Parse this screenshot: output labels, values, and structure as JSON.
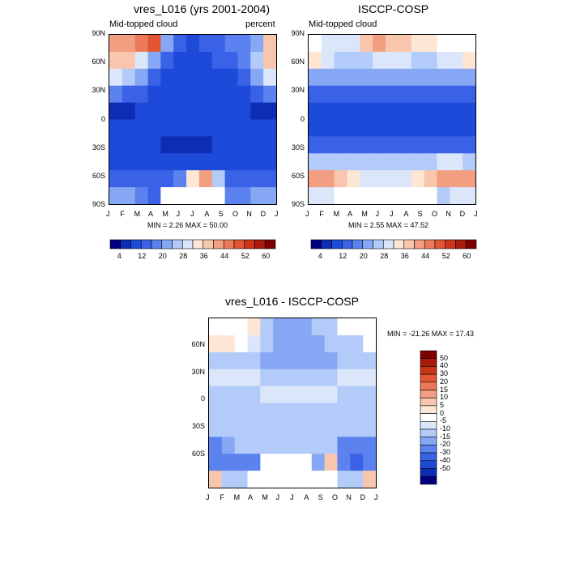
{
  "colors": {
    "d1": "#000080",
    "d2": "#0e2db5",
    "d3": "#1d4ad8",
    "d4": "#3a62e6",
    "d5": "#5b82ef",
    "d6": "#86a8f4",
    "d7": "#b3cbf8",
    "d8": "#dbe6fb",
    "w": "#ffffff",
    "u1": "#fde6d4",
    "u2": "#f8c6ad",
    "u3": "#f29e80",
    "u4": "#ec7a58",
    "u5": "#e25634",
    "u6": "#cc3418",
    "u7": "#a81a0a",
    "u8": "#800000"
  },
  "chart_data": [
    {
      "type": "heatmap",
      "title": "vres_L016 (yrs 2001-2004)",
      "left_label": "Mid-topped cloud",
      "right_label": "percent",
      "stats": "MIN =   2.26 MAX =  50.00",
      "x_ticks": [
        "J",
        "F",
        "M",
        "A",
        "M",
        "J",
        "J",
        "A",
        "S",
        "O",
        "N",
        "D",
        "J"
      ],
      "y_ticks": [
        "90N",
        "60N",
        "30N",
        "0",
        "30S",
        "60S",
        "90S"
      ],
      "colorbar_ticks": [
        "4",
        "12",
        "20",
        "28",
        "36",
        "44",
        "52",
        "60"
      ],
      "colorbar_levels": 16,
      "approx_values_note": "percent, rows 90N->90S, columns J..J",
      "grid": [
        [
          40,
          40,
          44,
          48,
          20,
          12,
          10,
          12,
          14,
          16,
          18,
          20,
          38
        ],
        [
          36,
          38,
          30,
          22,
          14,
          10,
          10,
          10,
          12,
          14,
          16,
          24,
          36
        ],
        [
          28,
          26,
          20,
          14,
          10,
          10,
          10,
          10,
          10,
          10,
          14,
          20,
          28
        ],
        [
          16,
          14,
          12,
          10,
          8,
          8,
          8,
          8,
          8,
          8,
          10,
          12,
          16
        ],
        [
          6,
          6,
          8,
          8,
          8,
          8,
          8,
          8,
          8,
          8,
          8,
          6,
          6
        ],
        [
          10,
          10,
          10,
          10,
          10,
          10,
          10,
          10,
          10,
          10,
          10,
          10,
          10
        ],
        [
          8,
          8,
          8,
          8,
          6,
          6,
          6,
          6,
          8,
          8,
          8,
          8,
          8
        ],
        [
          8,
          8,
          8,
          8,
          8,
          8,
          8,
          8,
          8,
          8,
          8,
          8,
          8
        ],
        [
          12,
          12,
          12,
          12,
          14,
          18,
          34,
          42,
          24,
          14,
          12,
          12,
          12
        ],
        [
          20,
          22,
          18,
          14,
          null,
          null,
          null,
          null,
          null,
          16,
          18,
          22,
          20
        ]
      ]
    },
    {
      "type": "heatmap",
      "title": "ISCCP-COSP",
      "left_label": "Mid-topped cloud",
      "right_label": "",
      "stats": "MIN =   2.55 MAX =  47.52",
      "x_ticks": [
        "J",
        "F",
        "M",
        "A",
        "M",
        "J",
        "J",
        "A",
        "S",
        "O",
        "N",
        "D",
        "J"
      ],
      "y_ticks": [
        "90N",
        "60N",
        "30N",
        "0",
        "30S",
        "60S",
        "90S"
      ],
      "colorbar_ticks": [
        "4",
        "12",
        "20",
        "28",
        "36",
        "44",
        "52",
        "60"
      ],
      "colorbar_levels": 16,
      "grid": [
        [
          null,
          30,
          30,
          28,
          36,
          40,
          38,
          36,
          34,
          32,
          null,
          null,
          null
        ],
        [
          32,
          30,
          26,
          24,
          26,
          28,
          30,
          28,
          26,
          26,
          28,
          30,
          32
        ],
        [
          22,
          20,
          20,
          20,
          22,
          22,
          22,
          22,
          22,
          22,
          22,
          22,
          22
        ],
        [
          12,
          12,
          12,
          12,
          12,
          12,
          12,
          12,
          12,
          12,
          12,
          12,
          12
        ],
        [
          10,
          10,
          10,
          10,
          10,
          10,
          10,
          10,
          10,
          10,
          10,
          10,
          10
        ],
        [
          10,
          10,
          10,
          10,
          10,
          10,
          10,
          10,
          10,
          10,
          10,
          10,
          10
        ],
        [
          14,
          14,
          14,
          14,
          14,
          14,
          14,
          14,
          14,
          14,
          14,
          14,
          14
        ],
        [
          24,
          24,
          24,
          24,
          24,
          24,
          24,
          24,
          24,
          26,
          28,
          28,
          26
        ],
        [
          40,
          42,
          38,
          34,
          30,
          30,
          30,
          30,
          32,
          36,
          40,
          42,
          40
        ],
        [
          30,
          28,
          null,
          null,
          null,
          null,
          null,
          null,
          null,
          null,
          26,
          28,
          30
        ]
      ]
    },
    {
      "type": "heatmap",
      "title": "vres_L016 - ISCCP-COSP",
      "stats": "MIN = -21.26 MAX =  17.43",
      "x_ticks": [
        "J",
        "F",
        "M",
        "A",
        "M",
        "J",
        "J",
        "A",
        "S",
        "O",
        "N",
        "D",
        "J"
      ],
      "y_ticks": [
        "60N",
        "30N",
        "0",
        "30S",
        "60S"
      ],
      "colorbar_ticks": [
        "50",
        "40",
        "30",
        "20",
        "15",
        "10",
        "5",
        "0",
        "-5",
        "-10",
        "-15",
        "-20",
        "-30",
        "-40",
        "-50"
      ],
      "grid": [
        [
          null,
          null,
          4,
          8,
          -8,
          -12,
          -14,
          -12,
          -10,
          -8,
          null,
          null,
          null
        ],
        [
          6,
          6,
          4,
          -4,
          -10,
          -12,
          -12,
          -12,
          -12,
          -10,
          -10,
          -8,
          4
        ],
        [
          -6,
          -8,
          -8,
          -10,
          -14,
          -12,
          -12,
          -12,
          -12,
          -12,
          -10,
          -8,
          -6
        ],
        [
          -4,
          -4,
          -4,
          -4,
          -6,
          -6,
          -6,
          -6,
          -6,
          -6,
          -4,
          -4,
          -4
        ],
        [
          -6,
          -6,
          -6,
          -6,
          -4,
          -4,
          -4,
          -4,
          -4,
          -4,
          -6,
          -6,
          -6
        ],
        [
          -6,
          -6,
          -6,
          -6,
          -6,
          -6,
          -6,
          -6,
          -6,
          -6,
          -6,
          -6,
          -6
        ],
        [
          -6,
          -6,
          -6,
          -6,
          -6,
          -6,
          -6,
          -6,
          -6,
          -6,
          -6,
          -6,
          -6
        ],
        [
          -16,
          -14,
          -10,
          -6,
          -6,
          -6,
          -6,
          -6,
          -6,
          -10,
          -16,
          -18,
          -16
        ],
        [
          -20,
          -20,
          -18,
          -16,
          null,
          null,
          null,
          null,
          -12,
          10,
          -20,
          -22,
          -20
        ],
        [
          10,
          -8,
          -10,
          null,
          null,
          null,
          null,
          null,
          null,
          null,
          -8,
          -8,
          10
        ]
      ]
    }
  ]
}
